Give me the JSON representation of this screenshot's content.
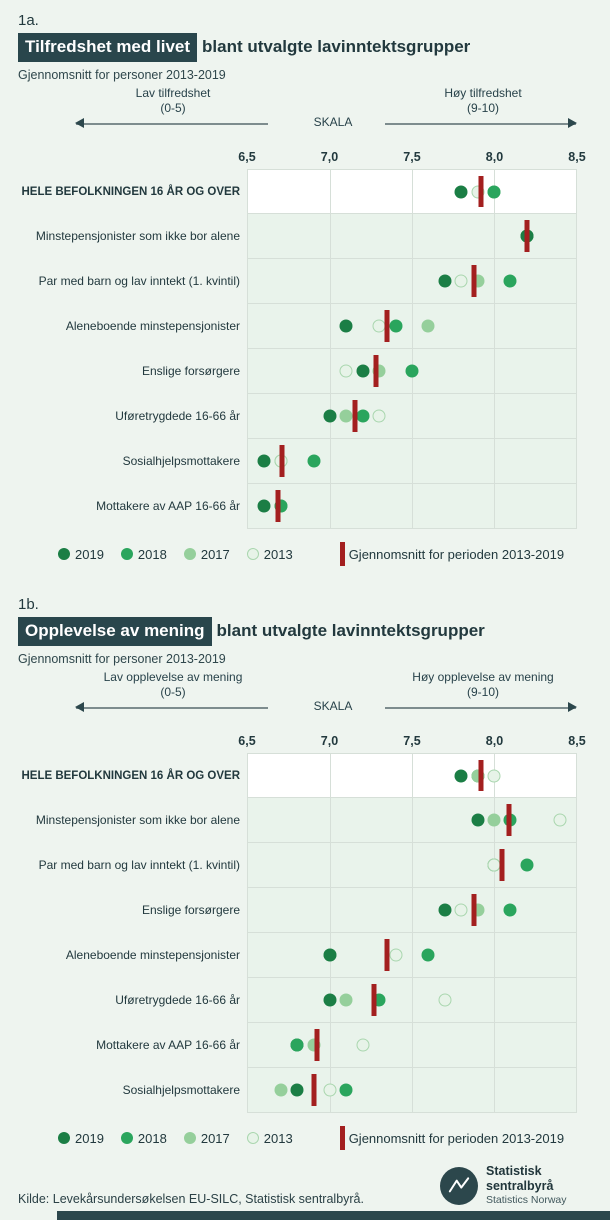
{
  "colors": {
    "y2019": "#1b7e45",
    "y2018": "#2aa55d",
    "y2017": "#95cf9b",
    "y2013_fill": "#e7f3e8",
    "y2013_border": "#a9d6ae",
    "avg": "#a31f1f",
    "highlight_bg": "#29464c",
    "row_bg": "#e9f3eb",
    "first_row_bg": "#ffffff"
  },
  "axis": {
    "skala_label": "SKALA",
    "min": 6.5,
    "max": 8.5,
    "tick_labels": [
      "6,5",
      "7,0",
      "7,5",
      "8,0",
      "8,5"
    ]
  },
  "legend": {
    "years": [
      {
        "key": "2019",
        "label": "2019"
      },
      {
        "key": "2018",
        "label": "2018"
      },
      {
        "key": "2017",
        "label": "2017"
      },
      {
        "key": "2013",
        "label": "2013"
      }
    ],
    "avg_label": "Gjennomsnitt for perioden 2013-2019"
  },
  "chart_data": [
    {
      "type": "scatter",
      "fig": "1a.",
      "title_highlight": "Tilfredshet med livet",
      "title_rest": "blant utvalgte lavinntektsgrupper",
      "subtitle": "Gjennomsnitt for personer 2013-2019",
      "low_label": "Lav tilfredshet",
      "low_range": "(0-5)",
      "high_label": "Høy tilfredshet",
      "high_range": "(9-10)",
      "xlim": [
        6.5,
        8.5
      ],
      "x_ticks": [
        "6,5",
        "7,0",
        "7,5",
        "8,0",
        "8,5"
      ],
      "series_order": [
        "2019",
        "2018",
        "2017",
        "2013"
      ],
      "rows": [
        {
          "label": "HELE BEFOLKNINGEN 16 ÅR OG OVER",
          "avg": 7.92,
          "dots": [
            {
              "series": "2017",
              "value": 8.0
            },
            {
              "series": "2018",
              "value": 8.0
            },
            {
              "series": "2013",
              "value": 7.9
            },
            {
              "series": "2019",
              "value": 7.8
            }
          ]
        },
        {
          "label": "Minstepensjonister som ikke bor alene",
          "avg": 8.2,
          "dots": [
            {
              "series": "2013",
              "value": 8.2
            },
            {
              "series": "2017",
              "value": 8.2
            },
            {
              "series": "2018",
              "value": 8.2
            },
            {
              "series": "2019",
              "value": 8.2
            }
          ]
        },
        {
          "label": "Par med barn og lav inntekt (1. kvintil)",
          "avg": 7.88,
          "dots": [
            {
              "series": "2019",
              "value": 7.7
            },
            {
              "series": "2013",
              "value": 7.8
            },
            {
              "series": "2017",
              "value": 7.9
            },
            {
              "series": "2018",
              "value": 8.1
            }
          ]
        },
        {
          "label": "Aleneboende minstepensjonister",
          "avg": 7.35,
          "dots": [
            {
              "series": "2019",
              "value": 7.1
            },
            {
              "series": "2013",
              "value": 7.3
            },
            {
              "series": "2018",
              "value": 7.4
            },
            {
              "series": "2017",
              "value": 7.6
            }
          ]
        },
        {
          "label": "Enslige forsørgere",
          "avg": 7.28,
          "dots": [
            {
              "series": "2013",
              "value": 7.1
            },
            {
              "series": "2019",
              "value": 7.2
            },
            {
              "series": "2017",
              "value": 7.3
            },
            {
              "series": "2018",
              "value": 7.5
            }
          ]
        },
        {
          "label": "Uføretrygdede 16-66 år",
          "avg": 7.15,
          "dots": [
            {
              "series": "2019",
              "value": 7.0
            },
            {
              "series": "2017",
              "value": 7.1
            },
            {
              "series": "2018",
              "value": 7.2
            },
            {
              "series": "2013",
              "value": 7.3
            }
          ]
        },
        {
          "label": "Sosialhjelpsmottakere",
          "avg": 6.71,
          "dots": [
            {
              "series": "2017",
              "value": 6.7
            },
            {
              "series": "2013",
              "value": 6.7
            },
            {
              "series": "2019",
              "value": 6.6
            },
            {
              "series": "2018",
              "value": 6.9
            }
          ]
        },
        {
          "label": "Mottakere av AAP 16-66 år",
          "avg": 6.68,
          "dots": [
            {
              "series": "2013",
              "value": 6.7
            },
            {
              "series": "2017",
              "value": 6.7
            },
            {
              "series": "2019",
              "value": 6.6
            },
            {
              "series": "2018",
              "value": 6.7
            }
          ]
        }
      ]
    },
    {
      "type": "scatter",
      "fig": "1b.",
      "title_highlight": "Opplevelse av mening",
      "title_rest": "blant utvalgte lavinntektsgrupper",
      "subtitle": "Gjennomsnitt for personer 2013-2019",
      "low_label": "Lav opplevelse av mening",
      "low_range": "(0-5)",
      "high_label": "Høy opplevelse av mening",
      "high_range": "(9-10)",
      "xlim": [
        6.5,
        8.5
      ],
      "x_ticks": [
        "6,5",
        "7,0",
        "7,5",
        "8,0",
        "8,5"
      ],
      "series_order": [
        "2019",
        "2018",
        "2017",
        "2013"
      ],
      "rows": [
        {
          "label": "HELE BEFOLKNINGEN 16 ÅR OG OVER",
          "avg": 7.92,
          "dots": [
            {
              "series": "2018",
              "value": 7.9
            },
            {
              "series": "2017",
              "value": 7.9
            },
            {
              "series": "2019",
              "value": 7.8
            },
            {
              "series": "2013",
              "value": 8.0
            }
          ]
        },
        {
          "label": "Minstepensjonister som ikke bor alene",
          "avg": 8.09,
          "dots": [
            {
              "series": "2019",
              "value": 7.9
            },
            {
              "series": "2017",
              "value": 8.0
            },
            {
              "series": "2018",
              "value": 8.1
            },
            {
              "series": "2013",
              "value": 8.4
            }
          ]
        },
        {
          "label": "Par med barn og lav inntekt (1. kvintil)",
          "avg": 8.05,
          "dots": [
            {
              "series": "2019",
              "value": 8.0
            },
            {
              "series": "2017",
              "value": 8.0
            },
            {
              "series": "2013",
              "value": 8.0
            },
            {
              "series": "2018",
              "value": 8.2
            }
          ]
        },
        {
          "label": "Enslige forsørgere",
          "avg": 7.88,
          "dots": [
            {
              "series": "2019",
              "value": 7.7
            },
            {
              "series": "2013",
              "value": 7.8
            },
            {
              "series": "2017",
              "value": 7.9
            },
            {
              "series": "2018",
              "value": 8.1
            }
          ]
        },
        {
          "label": "Aleneboende minstepensjonister",
          "avg": 7.35,
          "dots": [
            {
              "series": "2017",
              "value": 7.0
            },
            {
              "series": "2019",
              "value": 7.0
            },
            {
              "series": "2013",
              "value": 7.4
            },
            {
              "series": "2018",
              "value": 7.6
            }
          ]
        },
        {
          "label": "Uføretrygdede 16-66 år",
          "avg": 7.27,
          "dots": [
            {
              "series": "2019",
              "value": 7.0
            },
            {
              "series": "2017",
              "value": 7.1
            },
            {
              "series": "2018",
              "value": 7.3
            },
            {
              "series": "2013",
              "value": 7.7
            }
          ]
        },
        {
          "label": "Mottakere av AAP 16-66 år",
          "avg": 6.92,
          "dots": [
            {
              "series": "2019",
              "value": 6.8
            },
            {
              "series": "2018",
              "value": 6.8
            },
            {
              "series": "2017",
              "value": 6.9
            },
            {
              "series": "2013",
              "value": 7.2
            }
          ]
        },
        {
          "label": "Sosialhjelpsmottakere",
          "avg": 6.9,
          "dots": [
            {
              "series": "2017",
              "value": 6.7
            },
            {
              "series": "2019",
              "value": 6.8
            },
            {
              "series": "2013",
              "value": 7.0
            },
            {
              "series": "2018",
              "value": 7.1
            }
          ]
        }
      ]
    }
  ],
  "footer": {
    "source": "Kilde: Levekårsundersøkelsen EU-SILC, Statistisk sentralbyrå.",
    "logo_title": "Statistisk sentralbyrå",
    "logo_subtitle": "Statistics Norway"
  }
}
